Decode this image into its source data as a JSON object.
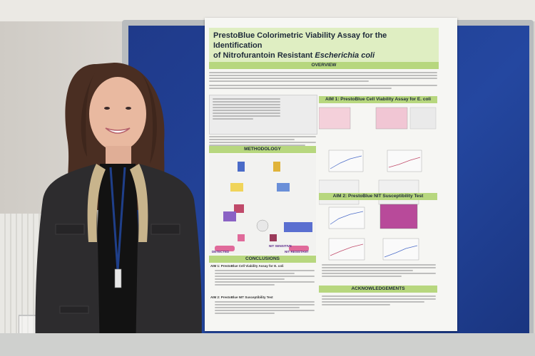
{
  "poster": {
    "title_line1": "PrestoBlue Colorimetric Viability Assay for the Identification",
    "title_line2_plain": "of Nitrofurantoin Resistant ",
    "title_line2_italic": "Escherichia coli",
    "overview": "OVERVIEW",
    "aim1": "AIM 1: PrestoBlue Cell Viability Assay for E. coli",
    "methodology": "METHODOLOGY",
    "aim2": "AIM 2: PrestoBlue NIT Susceptibility Test",
    "conclusions": "CONCLUSIONS",
    "conc_aim1": "AIM 1: PrestoBlue Cell Viability Assay for E. coli",
    "conc_aim2": "AIM 2: PrestoBlue NIT Susceptibility Test",
    "acknowledgements": "ACKNOWLEDGEMENTS",
    "nit_resistant": "NIT RESISTANT",
    "nit_sensitive": "NIT SENSITIVE",
    "detected": "DETECTED"
  },
  "colors": {
    "board_blue": "#2447a0",
    "header_green": "#b7d77e",
    "title_green": "#dfeec2",
    "plate_pink": "#e06a9a",
    "plate_purple": "#6a4aa8"
  }
}
